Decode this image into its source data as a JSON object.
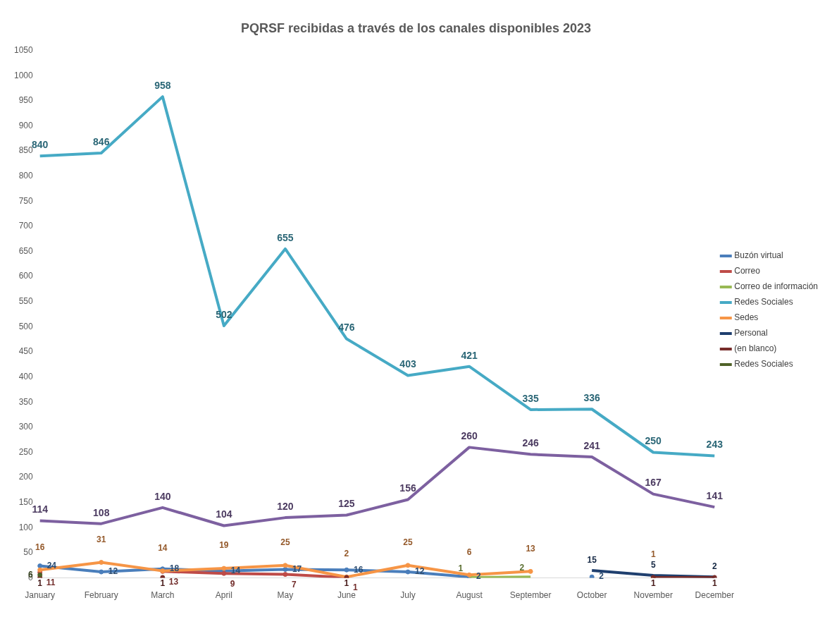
{
  "chart_data": {
    "type": "line",
    "title": "PQRSF recibidas a través de los canales disponibles 2023",
    "categories": [
      "January",
      "February",
      "March",
      "April",
      "May",
      "June",
      "July",
      "August",
      "September",
      "October",
      "November",
      "December"
    ],
    "series": [
      {
        "name": "Buzón virtual",
        "color": "#4a7ebb",
        "marker": "circle",
        "values": [
          24,
          12,
          18,
          14,
          17,
          16,
          12,
          2,
          null,
          2,
          null,
          null
        ]
      },
      {
        "name": "Correo",
        "color": "#be4b48",
        "marker": "circle",
        "values": [
          11,
          null,
          13,
          9,
          7,
          1,
          null,
          null,
          null,
          null,
          null,
          null
        ]
      },
      {
        "name": "Correo de información",
        "color": "#98b954",
        "values": [
          null,
          null,
          null,
          null,
          null,
          null,
          null,
          1,
          2,
          null,
          null,
          null
        ]
      },
      {
        "color": "#7d60a0",
        "values": [
          114,
          108,
          140,
          104,
          120,
          125,
          156,
          260,
          246,
          241,
          167,
          141
        ]
      },
      {
        "name": "Redes Sociales",
        "color": "#46aac5",
        "values": [
          840,
          846,
          958,
          502,
          655,
          476,
          403,
          421,
          335,
          336,
          250,
          243
        ]
      },
      {
        "name": "Sedes",
        "color": "#f69546",
        "marker": "circle",
        "values": [
          16,
          31,
          14,
          19,
          25,
          2,
          25,
          6,
          13,
          null,
          1,
          null
        ]
      },
      {
        "name": "Personal",
        "color": "#1f3f6e",
        "values": [
          null,
          null,
          null,
          null,
          null,
          null,
          null,
          null,
          null,
          15,
          5,
          2
        ]
      },
      {
        "name": "(en blanco)",
        "color": "#772c2a",
        "marker": "circle",
        "values": [
          1,
          null,
          1,
          null,
          null,
          1,
          null,
          null,
          null,
          null,
          1,
          1
        ]
      },
      {
        "name": "Redes Sociales",
        "color": "#4f6228",
        "marker": "circle",
        "values": [
          6,
          null,
          null,
          null,
          null,
          null,
          null,
          null,
          null,
          null,
          null,
          null
        ]
      }
    ],
    "ylim": [
      0,
      1050
    ],
    "yticks": [
      0,
      50,
      100,
      150,
      200,
      250,
      300,
      350,
      400,
      450,
      500,
      550,
      600,
      650,
      700,
      750,
      800,
      850,
      900,
      950,
      1000,
      1050
    ],
    "grid": false,
    "legend": "right",
    "marker": "none",
    "line_style": "solid",
    "data_labels": true
  }
}
